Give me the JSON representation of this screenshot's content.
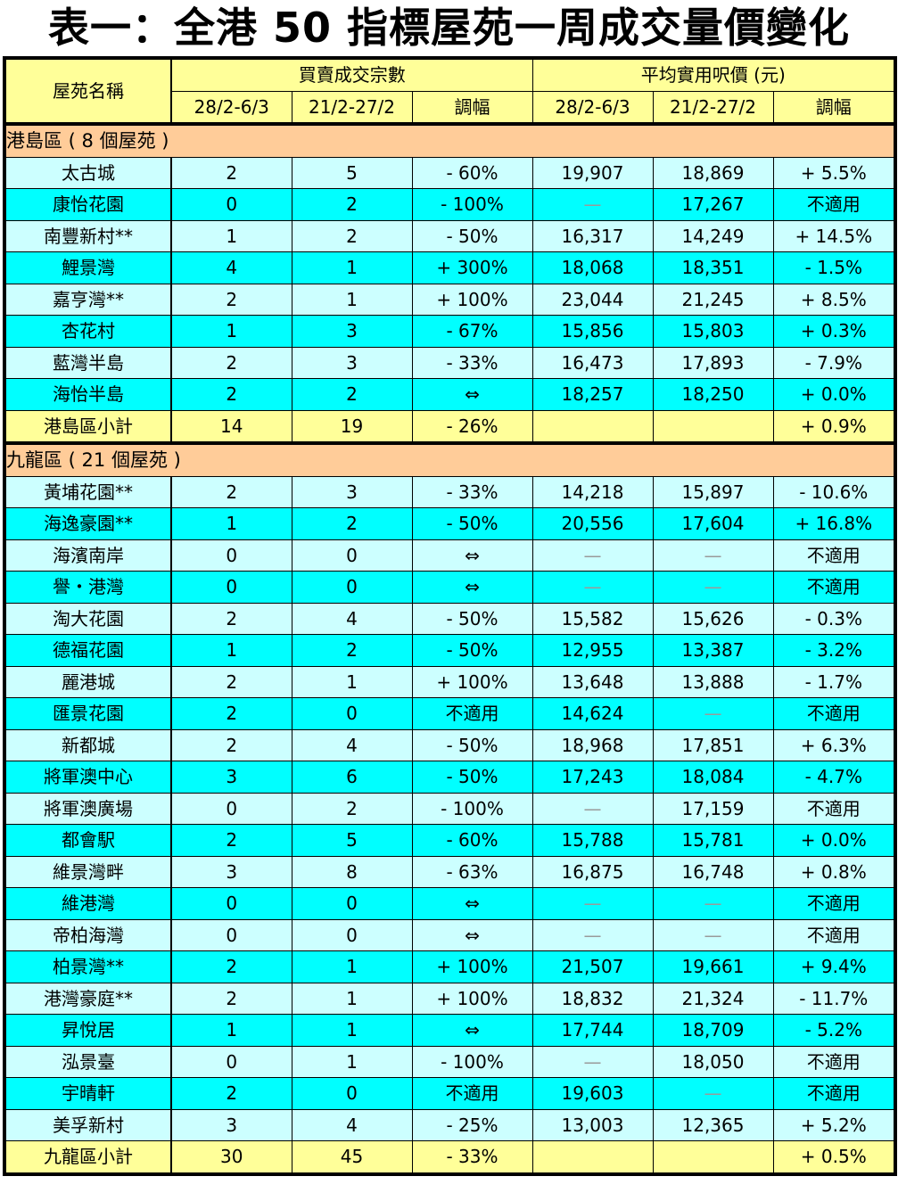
{
  "title": "表一：全港 50 指標屋苑一周成交量價變化",
  "colors": {
    "header": "#ffff99",
    "section": "#ffcc99",
    "row_light": "#ccffff",
    "row_cyan": "#00ffff",
    "subtotal": "#ffff99"
  },
  "header": {
    "estate_name": "屋苑名稱",
    "transactions_group": "買賣成交宗數",
    "price_group": "平均實用呎價 (元)",
    "sub": [
      "28/2-6/3",
      "21/2-27/2",
      "調幅",
      "28/2-6/3",
      "21/2-27/2",
      "調幅"
    ]
  },
  "sections": [
    {
      "label": "港島區 ( 8 個屋苑 )",
      "rows": [
        [
          "太古城",
          "2",
          "5",
          "- 60%",
          "19,907",
          "18,869",
          "+ 5.5%"
        ],
        [
          "康怡花園",
          "0",
          "2",
          "- 100%",
          "—",
          "17,267",
          "不適用"
        ],
        [
          "南豐新村**",
          "1",
          "2",
          "- 50%",
          "16,317",
          "14,249",
          "+ 14.5%"
        ],
        [
          "鯉景灣",
          "4",
          "1",
          "+ 300%",
          "18,068",
          "18,351",
          "- 1.5%"
        ],
        [
          "嘉亨灣**",
          "2",
          "1",
          "+ 100%",
          "23,044",
          "21,245",
          "+ 8.5%"
        ],
        [
          "杏花村",
          "1",
          "3",
          "- 67%",
          "15,856",
          "15,803",
          "+ 0.3%"
        ],
        [
          "藍灣半島",
          "2",
          "3",
          "- 33%",
          "16,473",
          "17,893",
          "- 7.9%"
        ],
        [
          "海怡半島",
          "2",
          "2",
          "⇔",
          "18,257",
          "18,250",
          "+ 0.0%"
        ]
      ],
      "subtotal": [
        "港島區小計",
        "14",
        "19",
        "- 26%",
        "",
        "",
        "+ 0.9%"
      ]
    },
    {
      "label": "九龍區 ( 21 個屋苑 )",
      "rows": [
        [
          "黃埔花園**",
          "2",
          "3",
          "- 33%",
          "14,218",
          "15,897",
          "- 10.6%"
        ],
        [
          "海逸豪園**",
          "1",
          "2",
          "- 50%",
          "20,556",
          "17,604",
          "+ 16.8%"
        ],
        [
          "海濱南岸",
          "0",
          "0",
          "⇔",
          "—",
          "—",
          "不適用"
        ],
        [
          "譽・港灣",
          "0",
          "0",
          "⇔",
          "—",
          "—",
          "不適用"
        ],
        [
          "淘大花園",
          "2",
          "4",
          "- 50%",
          "15,582",
          "15,626",
          "- 0.3%"
        ],
        [
          "德福花園",
          "1",
          "2",
          "- 50%",
          "12,955",
          "13,387",
          "- 3.2%"
        ],
        [
          "麗港城",
          "2",
          "1",
          "+ 100%",
          "13,648",
          "13,888",
          "- 1.7%"
        ],
        [
          "匯景花園",
          "2",
          "0",
          "不適用",
          "14,624",
          "—",
          "不適用"
        ],
        [
          "新都城",
          "2",
          "4",
          "- 50%",
          "18,968",
          "17,851",
          "+ 6.3%"
        ],
        [
          "將軍澳中心",
          "3",
          "6",
          "- 50%",
          "17,243",
          "18,084",
          "- 4.7%"
        ],
        [
          "將軍澳廣場",
          "0",
          "2",
          "- 100%",
          "—",
          "17,159",
          "不適用"
        ],
        [
          "都會駅",
          "2",
          "5",
          "- 60%",
          "15,788",
          "15,781",
          "+ 0.0%"
        ],
        [
          "維景灣畔",
          "3",
          "8",
          "- 63%",
          "16,875",
          "16,748",
          "+ 0.8%"
        ],
        [
          "維港灣",
          "0",
          "0",
          "⇔",
          "—",
          "—",
          "不適用"
        ],
        [
          "帝柏海灣",
          "0",
          "0",
          "⇔",
          "—",
          "—",
          "不適用"
        ],
        [
          "柏景灣**",
          "2",
          "1",
          "+ 100%",
          "21,507",
          "19,661",
          "+ 9.4%"
        ],
        [
          "港灣豪庭**",
          "2",
          "1",
          "+ 100%",
          "18,832",
          "21,324",
          "- 11.7%"
        ],
        [
          "昇悅居",
          "1",
          "1",
          "⇔",
          "17,744",
          "18,709",
          "- 5.2%"
        ],
        [
          "泓景臺",
          "0",
          "1",
          "- 100%",
          "—",
          "18,050",
          "不適用"
        ],
        [
          "宇晴軒",
          "2",
          "0",
          "不適用",
          "19,603",
          "—",
          "不適用"
        ],
        [
          "美孚新村",
          "3",
          "4",
          "- 25%",
          "13,003",
          "12,365",
          "+ 5.2%"
        ]
      ],
      "subtotal": [
        "九龍區小計",
        "30",
        "45",
        "- 33%",
        "",
        "",
        "+ 0.5%"
      ]
    }
  ]
}
